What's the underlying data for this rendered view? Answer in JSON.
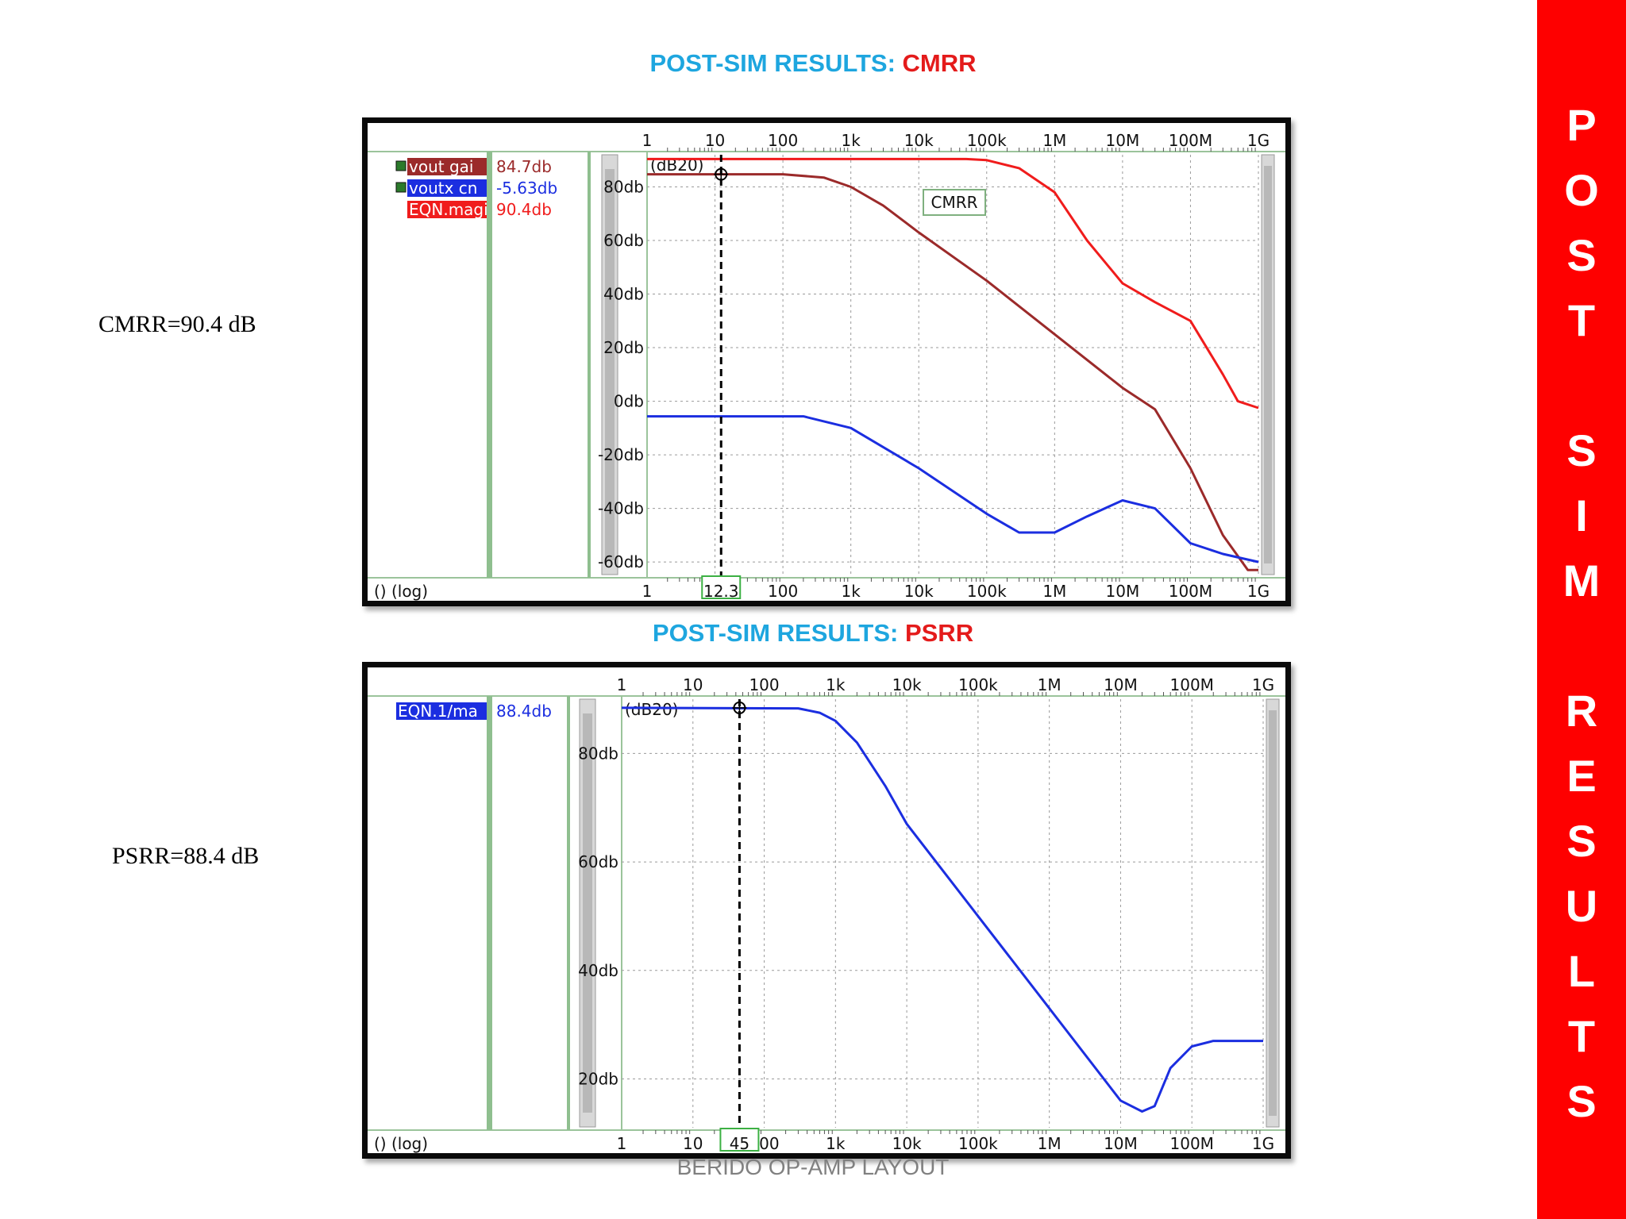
{
  "titles": {
    "cmrr": {
      "prefix": "POST-SIM RESULTS: ",
      "accent": "CMRR"
    },
    "psrr": {
      "prefix": "POST-SIM RESULTS: ",
      "accent": "PSRR"
    }
  },
  "notes": {
    "cmrr": "CMRR=90.4 dB",
    "psrr": "PSRR=88.4 dB"
  },
  "footer": "BERIDO OP-AMP LAYOUT",
  "sidebar": {
    "letters": [
      "P",
      "O",
      "S",
      "T",
      "S",
      "I",
      "M",
      "R",
      "E",
      "S",
      "U",
      "L",
      "T",
      "S"
    ]
  },
  "colors": {
    "title_blue": "#1ea6df",
    "accent_red": "#e41b1b",
    "sidebar_red": "#fe0000",
    "vout": "#9b2a2a",
    "voutx": "#1b2ee0",
    "eqn": "#f01c1c"
  },
  "chart_data": [
    {
      "type": "line",
      "x_scale": "log",
      "xlim": [
        1,
        1000000000
      ],
      "ylim": [
        -65,
        92
      ],
      "x_ticks": [
        1,
        10,
        100,
        1000,
        10000,
        100000,
        1000000,
        10000000,
        100000000,
        1000000000
      ],
      "x_tick_labels": [
        "1",
        "10",
        "100",
        "1k",
        "10k",
        "100k",
        "1M",
        "10M",
        "100M",
        "1G"
      ],
      "y_ticks": [
        80,
        60,
        40,
        20,
        0,
        -20,
        -40,
        -60
      ],
      "y_tick_labels": [
        "80db",
        "60db",
        "40db",
        "20db",
        "0db",
        "-20db",
        "-40db",
        "-60db"
      ],
      "y_unit": "(dB20)",
      "x_axis_label": "() (log)",
      "grid": true,
      "cursor": {
        "x": 12.3,
        "label": "12.3"
      },
      "annotation": "CMRR",
      "legend": [
        {
          "name": "vout gai",
          "value": "84.7db",
          "color": "#9b2a2a"
        },
        {
          "name": "voutx cn",
          "value": "-5.63db",
          "color": "#1b2ee0"
        },
        {
          "name": "EQN.magi",
          "value": "90.4db",
          "color": "#f01c1c"
        }
      ],
      "series": [
        {
          "name": "vout gai",
          "color": "#9b2a2a",
          "points": [
            [
              1,
              84.7
            ],
            [
              100,
              84.7
            ],
            [
              400,
              83.5
            ],
            [
              1000,
              80
            ],
            [
              3000,
              73
            ],
            [
              10000,
              63
            ],
            [
              100000,
              45
            ],
            [
              1000000,
              25
            ],
            [
              10000000,
              5
            ],
            [
              30000000,
              -3
            ],
            [
              100000000,
              -25
            ],
            [
              300000000,
              -50
            ],
            [
              700000000,
              -63
            ],
            [
              1000000000,
              -63
            ]
          ]
        },
        {
          "name": "voutx cn",
          "color": "#1b2ee0",
          "points": [
            [
              1,
              -5.63
            ],
            [
              200,
              -5.63
            ],
            [
              1000,
              -10
            ],
            [
              10000,
              -25
            ],
            [
              100000,
              -42
            ],
            [
              300000,
              -49
            ],
            [
              1000000,
              -49
            ],
            [
              3000000,
              -43
            ],
            [
              10000000,
              -37
            ],
            [
              30000000,
              -40
            ],
            [
              100000000,
              -53
            ],
            [
              300000000,
              -57
            ],
            [
              1000000000,
              -60
            ]
          ]
        },
        {
          "name": "EQN.magi",
          "color": "#f01c1c",
          "points": [
            [
              1,
              90.4
            ],
            [
              50000,
              90.4
            ],
            [
              100000,
              90
            ],
            [
              300000,
              87
            ],
            [
              1000000,
              78
            ],
            [
              3000000,
              60
            ],
            [
              10000000,
              44
            ],
            [
              30000000,
              37
            ],
            [
              100000000,
              30
            ],
            [
              300000000,
              10
            ],
            [
              500000000,
              0
            ],
            [
              1000000000,
              -2.5
            ]
          ]
        }
      ]
    },
    {
      "type": "line",
      "x_scale": "log",
      "xlim": [
        1,
        1000000000
      ],
      "ylim": [
        11,
        90
      ],
      "x_ticks": [
        1,
        10,
        100,
        1000,
        10000,
        100000,
        1000000,
        10000000,
        100000000,
        1000000000
      ],
      "x_tick_labels": [
        "1",
        "10",
        "100",
        "1k",
        "10k",
        "100k",
        "1M",
        "10M",
        "100M",
        "1G"
      ],
      "y_ticks": [
        80,
        60,
        40,
        20
      ],
      "y_tick_labels": [
        "80db",
        "60db",
        "40db",
        "20db"
      ],
      "y_unit": "(dB20)",
      "x_axis_label": "() (log)",
      "grid": true,
      "cursor": {
        "x": 45,
        "label": "45"
      },
      "legend": [
        {
          "name": "EQN.1/ma",
          "value": "88.4db",
          "color": "#1b2ee0"
        }
      ],
      "series": [
        {
          "name": "EQN.1/ma",
          "color": "#1b2ee0",
          "points": [
            [
              1,
              88.4
            ],
            [
              300,
              88.3
            ],
            [
              600,
              87.5
            ],
            [
              1000,
              86
            ],
            [
              2000,
              82
            ],
            [
              5000,
              74
            ],
            [
              10000,
              67
            ],
            [
              100000,
              50
            ],
            [
              1000000,
              33
            ],
            [
              10000000,
              16
            ],
            [
              20000000,
              14
            ],
            [
              30000000,
              15
            ],
            [
              50000000,
              22
            ],
            [
              100000000,
              26
            ],
            [
              200000000,
              27
            ],
            [
              1000000000,
              27
            ]
          ]
        }
      ]
    }
  ]
}
